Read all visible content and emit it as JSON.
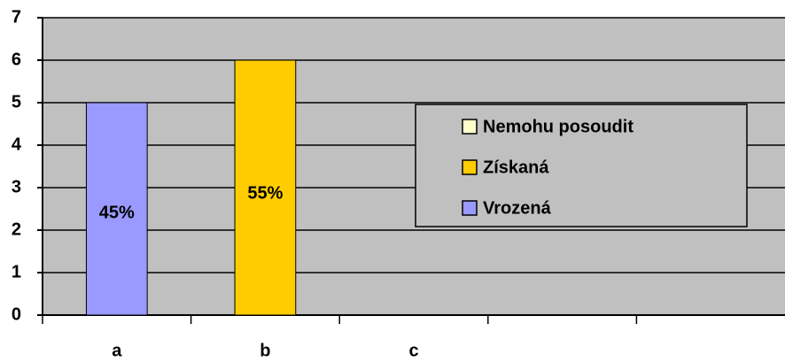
{
  "chart_data": {
    "type": "bar",
    "categories": [
      "a",
      "b",
      "c",
      null,
      null
    ],
    "series": [
      {
        "name": "Vrozená",
        "color": "#9999ff",
        "values": [
          5,
          null,
          null,
          null,
          null
        ]
      },
      {
        "name": "Získaná",
        "color": "#ffcc00",
        "values": [
          null,
          6,
          null,
          null,
          null
        ]
      },
      {
        "name": "Nemohu posoudit",
        "color": "#ffffcc",
        "values": [
          null,
          null,
          null,
          null,
          null
        ]
      }
    ],
    "annotations": [
      "45%",
      "55%"
    ],
    "ylim": [
      0,
      7
    ],
    "yticks": [
      0,
      1,
      2,
      3,
      4,
      5,
      6,
      7
    ],
    "grid": true,
    "plot_background": "#c0c0c0"
  }
}
